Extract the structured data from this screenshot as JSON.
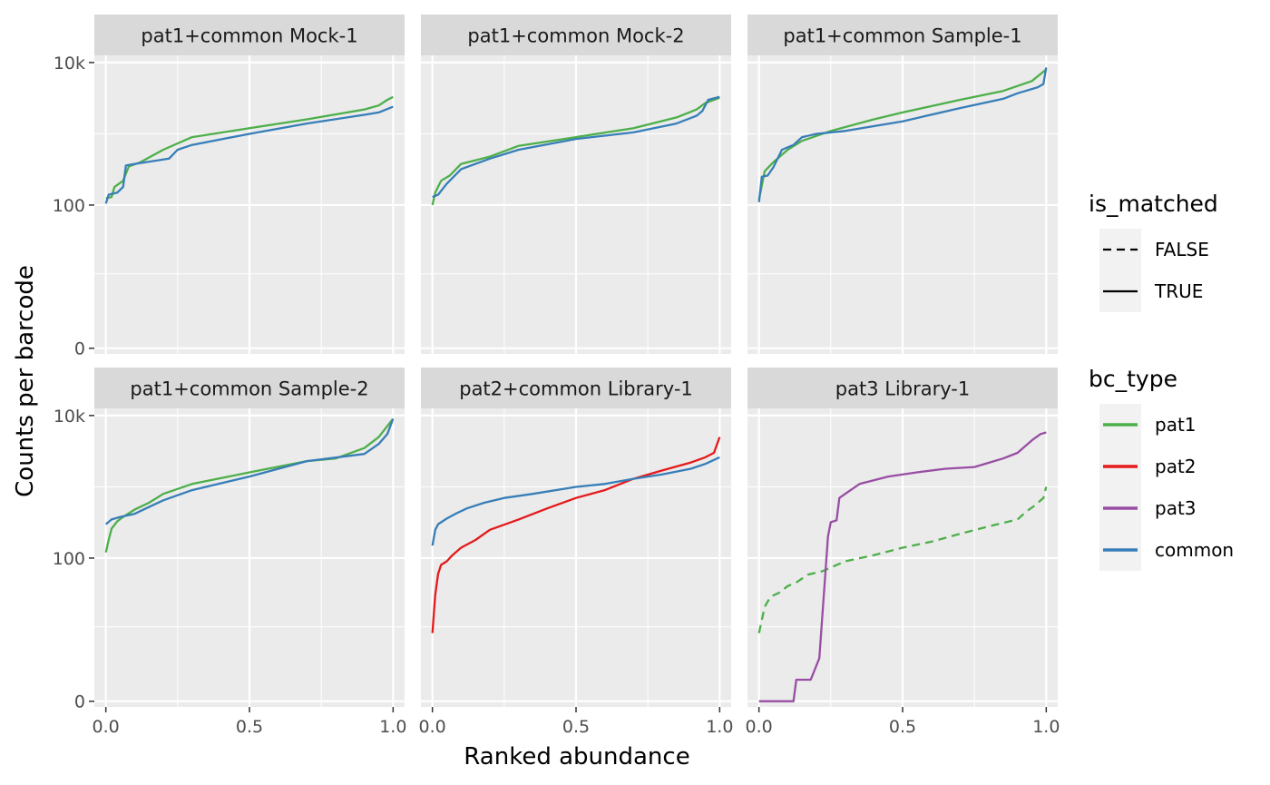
{
  "chart_data": {
    "type": "line",
    "xlabel": "Ranked abundance",
    "ylabel": "Counts per barcode",
    "xlim": [
      -0.04,
      1.04
    ],
    "x_ticks": [
      0.0,
      0.5,
      1.0
    ],
    "x_tick_labels": [
      "0.0",
      "0.5",
      "1.0"
    ],
    "y_scale": "pseudo-log",
    "y_ticks": [
      0,
      100,
      10000
    ],
    "y_tick_labels": [
      "0",
      "100",
      "10k"
    ],
    "y_minor_ticks": [
      10,
      1000
    ],
    "ylim_log10": [
      -0.08,
      4.1
    ],
    "grid": true,
    "legend_placement": "right",
    "colors": {
      "pat1": "#4daf4a",
      "pat2": "#e41a1c",
      "pat3": "#984ea3",
      "common": "#377eb8",
      "panel_bg": "#ebebeb",
      "strip_bg": "#d9d9d9",
      "grid": "#ffffff"
    },
    "legends": [
      {
        "title": "is_matched",
        "kind": "linetype",
        "entries": [
          {
            "label": "FALSE",
            "dash": true
          },
          {
            "label": "TRUE",
            "dash": false
          }
        ]
      },
      {
        "title": "bc_type",
        "kind": "color",
        "entries": [
          {
            "label": "pat1",
            "key": "pat1"
          },
          {
            "label": "pat2",
            "key": "pat2"
          },
          {
            "label": "pat3",
            "key": "pat3"
          },
          {
            "label": "common",
            "key": "common"
          }
        ]
      }
    ],
    "panels": [
      {
        "title": "pat1+common Mock-1",
        "series": [
          {
            "name": "pat1",
            "color": "pat1",
            "dashed": false,
            "x": [
              0,
              0.02,
              0.03,
              0.06,
              0.08,
              0.12,
              0.2,
              0.3,
              0.5,
              0.7,
              0.9,
              0.95,
              0.98,
              1.0
            ],
            "y": [
              125,
              130,
              180,
              220,
              350,
              400,
              600,
              900,
              1200,
              1600,
              2200,
              2500,
              3000,
              3300
            ]
          },
          {
            "name": "common",
            "color": "common",
            "dashed": false,
            "x": [
              0,
              0.01,
              0.04,
              0.06,
              0.07,
              0.1,
              0.17,
              0.22,
              0.25,
              0.3,
              0.5,
              0.7,
              0.9,
              0.95,
              1.0
            ],
            "y": [
              105,
              140,
              150,
              180,
              360,
              380,
              420,
              450,
              600,
              700,
              1000,
              1400,
              1850,
              2000,
              2400
            ]
          }
        ]
      },
      {
        "title": "pat1+common Mock-2",
        "series": [
          {
            "name": "pat1",
            "color": "pat1",
            "dashed": false,
            "x": [
              0,
              0.01,
              0.03,
              0.06,
              0.1,
              0.2,
              0.3,
              0.5,
              0.7,
              0.85,
              0.92,
              0.95,
              0.98,
              1.0
            ],
            "y": [
              100,
              150,
              220,
              260,
              380,
              480,
              680,
              900,
              1200,
              1700,
              2200,
              2700,
              3000,
              3200
            ]
          },
          {
            "name": "common",
            "color": "common",
            "dashed": false,
            "x": [
              0,
              0.02,
              0.05,
              0.1,
              0.2,
              0.3,
              0.5,
              0.7,
              0.85,
              0.92,
              0.94,
              0.96,
              1.0
            ],
            "y": [
              130,
              140,
              200,
              320,
              450,
              600,
              850,
              1050,
              1400,
              1800,
              2100,
              3000,
              3300
            ]
          }
        ]
      },
      {
        "title": "pat1+common Sample-1",
        "series": [
          {
            "name": "pat1",
            "color": "pat1",
            "dashed": false,
            "x": [
              0,
              0.02,
              0.05,
              0.1,
              0.15,
              0.25,
              0.4,
              0.5,
              0.7,
              0.85,
              0.95,
              1.0
            ],
            "y": [
              120,
              300,
              400,
              600,
              800,
              1100,
              1600,
              2000,
              3000,
              4000,
              5500,
              8000
            ]
          },
          {
            "name": "common",
            "color": "common",
            "dashed": false,
            "x": [
              0,
              0.01,
              0.03,
              0.05,
              0.08,
              0.12,
              0.15,
              0.2,
              0.3,
              0.5,
              0.7,
              0.85,
              0.9,
              0.97,
              0.99,
              1.0
            ],
            "y": [
              110,
              250,
              260,
              340,
              600,
              700,
              900,
              1000,
              1100,
              1500,
              2300,
              3100,
              3700,
              4500,
              5000,
              8500
            ]
          }
        ]
      },
      {
        "title": "pat1+common Sample-2",
        "series": [
          {
            "name": "pat1",
            "color": "pat1",
            "dashed": false,
            "x": [
              0,
              0.01,
              0.02,
              0.04,
              0.06,
              0.1,
              0.15,
              0.2,
              0.3,
              0.5,
              0.7,
              0.8,
              0.9,
              0.95,
              1.0
            ],
            "y": [
              120,
              180,
              260,
              330,
              380,
              480,
              600,
              800,
              1100,
              1600,
              2300,
              2500,
              3500,
              5000,
              9000
            ]
          },
          {
            "name": "common",
            "color": "common",
            "dashed": false,
            "x": [
              0,
              0.02,
              0.05,
              0.1,
              0.14,
              0.2,
              0.3,
              0.5,
              0.7,
              0.9,
              0.95,
              0.98,
              1.0
            ],
            "y": [
              300,
              350,
              380,
              420,
              500,
              650,
              900,
              1400,
              2300,
              2900,
              4000,
              5500,
              9000
            ]
          }
        ]
      },
      {
        "title": "pat2+common Library-1",
        "series": [
          {
            "name": "pat2",
            "color": "pat2",
            "dashed": false,
            "x": [
              0,
              0.01,
              0.02,
              0.03,
              0.05,
              0.07,
              0.1,
              0.15,
              0.2,
              0.3,
              0.4,
              0.5,
              0.6,
              0.7,
              0.8,
              0.9,
              0.95,
              0.98,
              1.0
            ],
            "y": [
              8,
              30,
              60,
              80,
              90,
              110,
              140,
              180,
              250,
              350,
              500,
              700,
              900,
              1300,
              1700,
              2200,
              2600,
              3000,
              5000
            ]
          },
          {
            "name": "common",
            "color": "common",
            "dashed": false,
            "x": [
              0,
              0.01,
              0.02,
              0.05,
              0.08,
              0.12,
              0.18,
              0.25,
              0.35,
              0.5,
              0.6,
              0.7,
              0.8,
              0.9,
              0.95,
              1.0
            ],
            "y": [
              150,
              250,
              300,
              360,
              420,
              500,
              600,
              700,
              800,
              1000,
              1100,
              1300,
              1500,
              1800,
              2100,
              2600
            ]
          }
        ]
      },
      {
        "title": "pat3 Library-1",
        "series": [
          {
            "name": "pat1",
            "color": "pat1",
            "dashed": true,
            "x": [
              0,
              0.02,
              0.04,
              0.07,
              0.1,
              0.13,
              0.17,
              0.22,
              0.3,
              0.4,
              0.5,
              0.6,
              0.7,
              0.8,
              0.9,
              0.93,
              0.96,
              0.99,
              1.0
            ],
            "y": [
              8,
              20,
              28,
              32,
              40,
              45,
              58,
              65,
              90,
              110,
              140,
              170,
              220,
              280,
              350,
              450,
              550,
              700,
              1000
            ]
          },
          {
            "name": "pat3",
            "color": "pat3",
            "dashed": false,
            "x": [
              0,
              0.12,
              0.13,
              0.17,
              0.18,
              0.21,
              0.24,
              0.25,
              0.26,
              0.27,
              0.28,
              0.3,
              0.35,
              0.45,
              0.55,
              0.65,
              0.75,
              0.85,
              0.9,
              0.95,
              0.98,
              1.0
            ],
            "y": [
              0,
              0,
              1,
              1,
              1,
              3,
              200,
              320,
              330,
              340,
              700,
              800,
              1100,
              1400,
              1600,
              1800,
              1900,
              2500,
              3000,
              4500,
              5500,
              5800
            ]
          }
        ]
      }
    ]
  }
}
